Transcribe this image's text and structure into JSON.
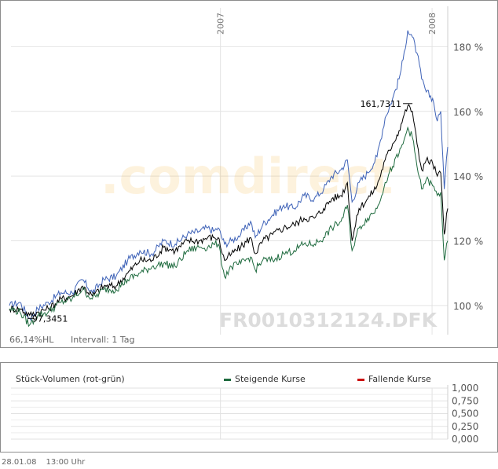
{
  "chart_data": [
    {
      "type": "line",
      "x_start": "2006-01-02",
      "x_end": "2008-01-28",
      "x_ticks": [
        "2007",
        "2008"
      ],
      "y_ticks": [
        "100 %",
        "120 %",
        "140 %",
        "160 %",
        "180 %"
      ],
      "ylim": [
        91,
        192
      ],
      "grid": true,
      "watermark": ".comdirect",
      "instrument": "FR0010312124.DFK",
      "info_left": "66,14%HL",
      "info_interval": "Intervall: 1 Tag",
      "annotations": [
        {
          "label": "97,3451",
          "series": "close",
          "kind": "min"
        },
        {
          "label": "161,7311",
          "series": "close",
          "kind": "max"
        }
      ],
      "series": [
        {
          "key": "high",
          "color": "#3f63b8",
          "points": [
            [
              "2006-01-02",
              100
            ],
            [
              "2006-01-20",
              101
            ],
            [
              "2006-02-06",
              96
            ],
            [
              "2006-02-20",
              99
            ],
            [
              "2006-03-10",
              101
            ],
            [
              "2006-04-01",
              104
            ],
            [
              "2006-04-20",
              104
            ],
            [
              "2006-05-08",
              108
            ],
            [
              "2006-05-25",
              104
            ],
            [
              "2006-06-14",
              108
            ],
            [
              "2006-07-05",
              109
            ],
            [
              "2006-07-25",
              114
            ],
            [
              "2006-08-15",
              117
            ],
            [
              "2006-09-05",
              116
            ],
            [
              "2006-09-25",
              120
            ],
            [
              "2006-10-15",
              119
            ],
            [
              "2006-11-05",
              122
            ],
            [
              "2006-11-25",
              123
            ],
            [
              "2006-12-10",
              124
            ],
            [
              "2006-12-20",
              123
            ],
            [
              "2006-12-28",
              124
            ],
            [
              "2007-01-08",
              119
            ],
            [
              "2007-01-20",
              120
            ],
            [
              "2007-02-05",
              122
            ],
            [
              "2007-02-22",
              126
            ],
            [
              "2007-03-02",
              121
            ],
            [
              "2007-03-15",
              125
            ],
            [
              "2007-04-01",
              128
            ],
            [
              "2007-04-20",
              131
            ],
            [
              "2007-05-08",
              130
            ],
            [
              "2007-05-25",
              134
            ],
            [
              "2007-06-12",
              133
            ],
            [
              "2007-06-28",
              136
            ],
            [
              "2007-07-12",
              140
            ],
            [
              "2007-07-28",
              142
            ],
            [
              "2007-08-08",
              145
            ],
            [
              "2007-08-16",
              132
            ],
            [
              "2007-08-28",
              138
            ],
            [
              "2007-09-12",
              141
            ],
            [
              "2007-09-28",
              146
            ],
            [
              "2007-10-12",
              158
            ],
            [
              "2007-10-25",
              164
            ],
            [
              "2007-11-05",
              170
            ],
            [
              "2007-11-12",
              176
            ],
            [
              "2007-11-20",
              185
            ],
            [
              "2007-11-28",
              183
            ],
            [
              "2007-12-06",
              178
            ],
            [
              "2007-12-14",
              170
            ],
            [
              "2007-12-22",
              166
            ],
            [
              "2008-01-02",
              164
            ],
            [
              "2008-01-10",
              157
            ],
            [
              "2008-01-16",
              160
            ],
            [
              "2008-01-22",
              136
            ],
            [
              "2008-01-28",
              149
            ]
          ]
        },
        {
          "key": "close",
          "color": "#000000",
          "points": [
            [
              "2006-01-02",
              99
            ],
            [
              "2006-01-20",
              99
            ],
            [
              "2006-02-06",
              97
            ],
            [
              "2006-02-20",
              98
            ],
            [
              "2006-03-10",
              99
            ],
            [
              "2006-04-01",
              102
            ],
            [
              "2006-04-20",
              103
            ],
            [
              "2006-05-08",
              106
            ],
            [
              "2006-05-25",
              103
            ],
            [
              "2006-06-14",
              106
            ],
            [
              "2006-07-05",
              106
            ],
            [
              "2006-07-25",
              110
            ],
            [
              "2006-08-15",
              114
            ],
            [
              "2006-09-05",
              114
            ],
            [
              "2006-09-25",
              118
            ],
            [
              "2006-10-15",
              117
            ],
            [
              "2006-11-05",
              120
            ],
            [
              "2006-11-25",
              120
            ],
            [
              "2006-12-10",
              121
            ],
            [
              "2006-12-20",
              121
            ],
            [
              "2006-12-28",
              121
            ],
            [
              "2007-01-08",
              114
            ],
            [
              "2007-01-20",
              116
            ],
            [
              "2007-02-05",
              118
            ],
            [
              "2007-02-22",
              121
            ],
            [
              "2007-03-02",
              116
            ],
            [
              "2007-03-15",
              120
            ],
            [
              "2007-04-01",
              122
            ],
            [
              "2007-04-20",
              124
            ],
            [
              "2007-05-08",
              125
            ],
            [
              "2007-05-25",
              127
            ],
            [
              "2007-06-12",
              127
            ],
            [
              "2007-06-28",
              130
            ],
            [
              "2007-07-12",
              133
            ],
            [
              "2007-07-28",
              134
            ],
            [
              "2007-08-08",
              138
            ],
            [
              "2007-08-16",
              120
            ],
            [
              "2007-08-28",
              130
            ],
            [
              "2007-09-12",
              133
            ],
            [
              "2007-09-28",
              137
            ],
            [
              "2007-10-12",
              145
            ],
            [
              "2007-10-25",
              150
            ],
            [
              "2007-11-05",
              154
            ],
            [
              "2007-11-12",
              158
            ],
            [
              "2007-11-20",
              161.7
            ],
            [
              "2007-11-28",
              160
            ],
            [
              "2007-12-06",
              150
            ],
            [
              "2007-12-14",
              142
            ],
            [
              "2007-12-22",
              145
            ],
            [
              "2008-01-02",
              144
            ],
            [
              "2008-01-10",
              140
            ],
            [
              "2008-01-16",
              141
            ],
            [
              "2008-01-22",
              122
            ],
            [
              "2008-01-28",
              130
            ]
          ]
        },
        {
          "key": "low",
          "color": "#1f6b3f",
          "points": [
            [
              "2006-01-02",
              99
            ],
            [
              "2006-01-20",
              98
            ],
            [
              "2006-02-06",
              94
            ],
            [
              "2006-02-20",
              97
            ],
            [
              "2006-03-10",
              98
            ],
            [
              "2006-04-01",
              101
            ],
            [
              "2006-04-20",
              102
            ],
            [
              "2006-05-08",
              105
            ],
            [
              "2006-05-25",
              102
            ],
            [
              "2006-06-14",
              105
            ],
            [
              "2006-07-05",
              105
            ],
            [
              "2006-07-25",
              108
            ],
            [
              "2006-08-15",
              110
            ],
            [
              "2006-09-05",
              112
            ],
            [
              "2006-09-25",
              113
            ],
            [
              "2006-10-15",
              112
            ],
            [
              "2006-11-05",
              117
            ],
            [
              "2006-11-25",
              118
            ],
            [
              "2006-12-10",
              118
            ],
            [
              "2006-12-20",
              119
            ],
            [
              "2006-12-28",
              119
            ],
            [
              "2007-01-08",
              109
            ],
            [
              "2007-01-20",
              112
            ],
            [
              "2007-02-05",
              113
            ],
            [
              "2007-02-22",
              115
            ],
            [
              "2007-03-02",
              111
            ],
            [
              "2007-03-15",
              114
            ],
            [
              "2007-04-01",
              114
            ],
            [
              "2007-04-20",
              116
            ],
            [
              "2007-05-08",
              117
            ],
            [
              "2007-05-25",
              119
            ],
            [
              "2007-06-12",
              119
            ],
            [
              "2007-06-28",
              121
            ],
            [
              "2007-07-12",
              124
            ],
            [
              "2007-07-28",
              126
            ],
            [
              "2007-08-08",
              131
            ],
            [
              "2007-08-16",
              117
            ],
            [
              "2007-08-28",
              124
            ],
            [
              "2007-09-12",
              127
            ],
            [
              "2007-09-28",
              130
            ],
            [
              "2007-10-12",
              138
            ],
            [
              "2007-10-25",
              143
            ],
            [
              "2007-11-05",
              147
            ],
            [
              "2007-11-12",
              150
            ],
            [
              "2007-11-20",
              155
            ],
            [
              "2007-11-28",
              152
            ],
            [
              "2007-12-06",
              143
            ],
            [
              "2007-12-14",
              136
            ],
            [
              "2007-12-22",
              139
            ],
            [
              "2008-01-02",
              137
            ],
            [
              "2008-01-10",
              134
            ],
            [
              "2008-01-16",
              135
            ],
            [
              "2008-01-22",
              114
            ],
            [
              "2008-01-28",
              120
            ]
          ]
        }
      ]
    },
    {
      "type": "bar",
      "title": "Stück-Volumen (rot-grün)",
      "y_ticks": [
        "1,000",
        "0,750",
        "0,500",
        "0,250",
        "0,000"
      ],
      "ylim": [
        0,
        1
      ],
      "legend": [
        {
          "label": "Steigende Kurse",
          "color": "#1f6b3f"
        },
        {
          "label": "Fallende Kurse",
          "color": "#cc1111"
        }
      ],
      "values": []
    }
  ],
  "footer": {
    "date": "28.01.08",
    "time": "13:00 Uhr"
  }
}
